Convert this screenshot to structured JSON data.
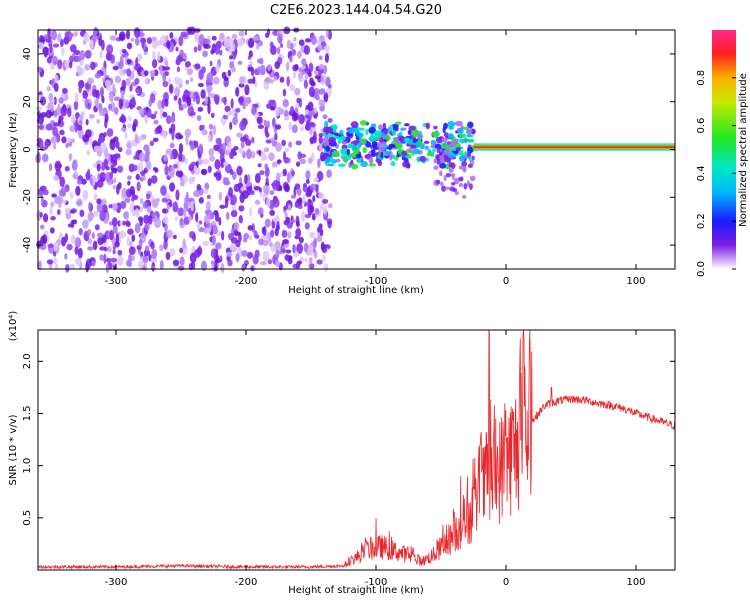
{
  "title": "C2E6.2023.144.04.54.G20",
  "chart_data": [
    {
      "type": "heatmap",
      "xlabel": "Height of straight line (km)",
      "ylabel": "Frequency (Hz)",
      "xlim": [
        -360,
        130
      ],
      "ylim": [
        -50,
        50
      ],
      "xticks": [
        -300,
        -200,
        -100,
        0,
        100
      ],
      "yticks": [
        -40,
        -20,
        0,
        20,
        40
      ],
      "colorbar": {
        "label": "Normalized spectral amplitude",
        "range": [
          0,
          1
        ],
        "ticks": [
          "0.0",
          "0.2",
          "0.4",
          "0.6",
          "0.8"
        ],
        "colormap": "rainbow (white→violet→blue→cyan→green→yellow→red→magenta)"
      },
      "regions": [
        {
          "x": [
            -360,
            -135
          ],
          "description": "scattered low-amplitude noise across full frequency band"
        },
        {
          "x": [
            -140,
            -25
          ],
          "frequency_center": 2,
          "description": "irregular medium-amplitude band near 0 Hz"
        },
        {
          "x": [
            -25,
            130
          ],
          "frequency_center": 1,
          "description": "narrow high-amplitude line near 1 Hz"
        }
      ]
    },
    {
      "type": "line",
      "xlabel": "Height of straight line (km)",
      "ylabel": "SNR (10 * v/v)",
      "y_multiplier": "(x10⁴)",
      "xlim": [
        -360,
        130
      ],
      "ylim": [
        0,
        2.3
      ],
      "xticks": [
        -300,
        -200,
        -100,
        0,
        100
      ],
      "yticks": [
        0.5,
        1.0,
        1.5,
        2.0
      ],
      "ytick_labels": [
        "0.5",
        "1.0",
        "1.5",
        "2.0"
      ],
      "color": "#e8282c",
      "series": [
        {
          "x": [
            -360,
            -300,
            -250,
            -200,
            -150,
            -125,
            -115,
            -105,
            -95,
            -85,
            -75,
            -65,
            -55,
            -45,
            -35,
            -25,
            -15,
            -8,
            0,
            10,
            20,
            30,
            40,
            50,
            60,
            70,
            80,
            90,
            100,
            110,
            120,
            130
          ],
          "y": [
            0.03,
            0.03,
            0.04,
            0.03,
            0.03,
            0.04,
            0.12,
            0.2,
            0.22,
            0.18,
            0.14,
            0.08,
            0.15,
            0.28,
            0.4,
            0.58,
            0.85,
            0.9,
            1.05,
            1.2,
            1.42,
            1.58,
            1.62,
            1.64,
            1.63,
            1.6,
            1.58,
            1.55,
            1.5,
            1.46,
            1.42,
            1.38
          ],
          "spikes": [
            [
              -13,
              2.3
            ],
            [
              -8,
              1.45
            ],
            [
              -20,
              1.2
            ],
            [
              -35,
              0.9
            ],
            [
              -100,
              0.5
            ],
            [
              35,
              1.75
            ]
          ]
        }
      ]
    }
  ]
}
